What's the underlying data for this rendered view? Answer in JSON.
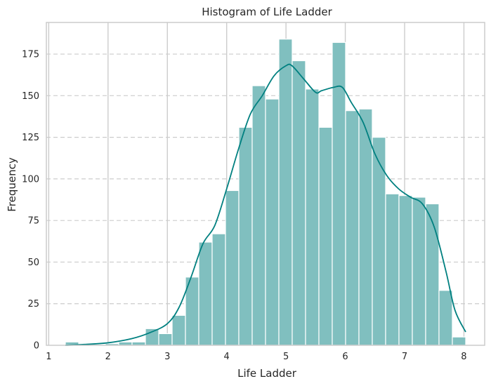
{
  "chart_data": {
    "type": "bar",
    "title": "Histogram of Life Ladder",
    "xlabel": "Life Ladder",
    "ylabel": "Frequency",
    "xlim": [
      0.96,
      8.35
    ],
    "ylim": [
      0,
      194
    ],
    "x_ticks": [
      1,
      2,
      3,
      4,
      5,
      6,
      7,
      8
    ],
    "y_ticks": [
      0,
      25,
      50,
      75,
      100,
      125,
      150,
      175
    ],
    "bin_edges": [
      1.28,
      1.505,
      1.73,
      1.955,
      2.18,
      2.405,
      2.63,
      2.855,
      3.08,
      3.305,
      3.53,
      3.755,
      3.98,
      4.205,
      4.43,
      4.655,
      4.88,
      5.105,
      5.33,
      5.555,
      5.78,
      6.005,
      6.23,
      6.455,
      6.68,
      6.905,
      7.13,
      7.355,
      7.58,
      7.805,
      8.03
    ],
    "counts": [
      2,
      0,
      0,
      1,
      2,
      2,
      10,
      7,
      18,
      41,
      62,
      67,
      93,
      131,
      156,
      148,
      184,
      171,
      154,
      131,
      182,
      141,
      142,
      125,
      91,
      90,
      89,
      85,
      33,
      5
    ],
    "kde": {
      "x": [
        1.28,
        1.6,
        2.0,
        2.4,
        2.7,
        3.0,
        3.2,
        3.4,
        3.6,
        3.8,
        4.0,
        4.2,
        4.4,
        4.6,
        4.8,
        5.0,
        5.1,
        5.3,
        5.5,
        5.6,
        5.8,
        5.95,
        6.1,
        6.3,
        6.5,
        6.7,
        6.9,
        7.1,
        7.3,
        7.5,
        7.7,
        7.85,
        8.03
      ],
      "y": [
        0,
        0.5,
        1.5,
        4,
        7.5,
        13,
        23,
        41,
        61,
        72,
        94,
        118,
        139,
        150,
        162,
        168,
        168,
        160,
        152,
        153,
        155,
        155,
        146,
        134,
        115,
        102,
        94,
        89,
        85,
        71,
        44,
        21,
        8
      ]
    },
    "colors": {
      "bar_fill": "#80bfbf",
      "bar_edge": "#ffffff",
      "kde_line": "#008080",
      "grid_vertical": "#cccccc",
      "grid_horizontal": "#cccccc",
      "axes_edge": "#cccccc",
      "text": "#262626"
    },
    "grid": {
      "x": "solid",
      "y": "dashed"
    },
    "legend": "none"
  }
}
